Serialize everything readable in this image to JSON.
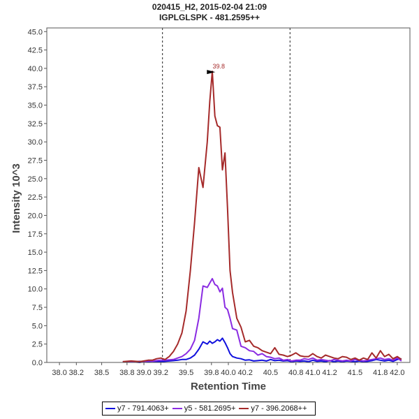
{
  "chart_data": {
    "type": "line",
    "title": "020415_H2, 2015-02-04 21:09",
    "subtitle": "IGPLGLSPK - 481.2595++",
    "xlabel": "Retention Time",
    "ylabel": "Intensity 10^3",
    "xlim": [
      37.85,
      42.15
    ],
    "ylim": [
      0,
      45.5
    ],
    "x_ticks": [
      "38.0",
      "38.2",
      "38.5",
      "38.8",
      "39.0",
      "39.2",
      "39.5",
      "39.8",
      "40.0",
      "40.2",
      "40.5",
      "40.8",
      "41.0",
      "41.2",
      "41.5",
      "41.8",
      "42.0"
    ],
    "x_tick_values": [
      38.0,
      38.2,
      38.5,
      38.8,
      39.0,
      39.2,
      39.5,
      39.8,
      40.0,
      40.2,
      40.5,
      40.8,
      41.0,
      41.2,
      41.5,
      41.8,
      42.0
    ],
    "y_ticks": [
      "0.0",
      "2.5",
      "5.0",
      "7.5",
      "10.0",
      "12.5",
      "15.0",
      "17.5",
      "20.0",
      "22.5",
      "25.0",
      "27.5",
      "30.0",
      "32.5",
      "35.0",
      "37.5",
      "40.0",
      "42.5",
      "45.0"
    ],
    "y_tick_values": [
      0,
      2.5,
      5,
      7.5,
      10,
      12.5,
      15,
      17.5,
      20,
      22.5,
      25,
      27.5,
      30,
      32.5,
      35,
      37.5,
      40,
      42.5,
      45
    ],
    "vlines": [
      39.22,
      40.73
    ],
    "peak_annotation": {
      "label": "39.8",
      "x": 39.87,
      "y": 39.6
    },
    "series": [
      {
        "name": "y7 - 791.4063+",
        "color": "#1010dd",
        "x": [
          38.75,
          38.85,
          38.95,
          39.0,
          39.05,
          39.1,
          39.15,
          39.2,
          39.25,
          39.3,
          39.35,
          39.4,
          39.45,
          39.5,
          39.55,
          39.6,
          39.65,
          39.7,
          39.75,
          39.78,
          39.81,
          39.84,
          39.87,
          39.9,
          39.93,
          39.96,
          39.99,
          40.02,
          40.05,
          40.1,
          40.15,
          40.2,
          40.25,
          40.3,
          40.35,
          40.4,
          40.45,
          40.5,
          40.55,
          40.6,
          40.65,
          40.7,
          40.75,
          40.8,
          40.85,
          40.9,
          40.95,
          41.0,
          41.05,
          41.1,
          41.15,
          41.2,
          41.25,
          41.3,
          41.35,
          41.4,
          41.45,
          41.5,
          41.55,
          41.6,
          41.65,
          41.7,
          41.75,
          41.8,
          41.85,
          41.9,
          41.95,
          42.0,
          42.05
        ],
        "y": [
          0.05,
          0.1,
          0.0,
          0.1,
          0.05,
          0.15,
          0.1,
          0.1,
          0.15,
          0.2,
          0.25,
          0.3,
          0.4,
          0.4,
          0.6,
          1.0,
          1.8,
          2.8,
          2.5,
          2.9,
          2.6,
          2.8,
          3.1,
          2.9,
          3.3,
          2.7,
          2.0,
          1.2,
          0.8,
          0.6,
          0.5,
          0.3,
          0.35,
          0.2,
          0.25,
          0.3,
          0.2,
          0.4,
          0.25,
          0.3,
          0.2,
          0.25,
          0.1,
          0.2,
          0.15,
          0.2,
          0.1,
          0.3,
          0.15,
          0.2,
          0.1,
          0.25,
          0.1,
          0.2,
          0.1,
          0.2,
          0.15,
          0.1,
          0.2,
          0.1,
          0.15,
          0.25,
          0.4,
          0.3,
          0.2,
          0.3,
          0.15,
          0.4,
          0.5
        ]
      },
      {
        "name": "y5 - 581.2695+",
        "color": "#8a2be2",
        "x": [
          38.75,
          38.85,
          38.95,
          39.0,
          39.05,
          39.1,
          39.15,
          39.2,
          39.25,
          39.3,
          39.35,
          39.4,
          39.45,
          39.5,
          39.55,
          39.6,
          39.65,
          39.7,
          39.75,
          39.78,
          39.81,
          39.84,
          39.87,
          39.9,
          39.93,
          39.96,
          39.99,
          40.02,
          40.05,
          40.1,
          40.15,
          40.2,
          40.25,
          40.3,
          40.35,
          40.4,
          40.45,
          40.5,
          40.55,
          40.6,
          40.65,
          40.7,
          40.75,
          40.8,
          40.85,
          40.9,
          40.95,
          41.0,
          41.05,
          41.1,
          41.15,
          41.2,
          41.25,
          41.3,
          41.35,
          41.4,
          41.45,
          41.5,
          41.55,
          41.6,
          41.65,
          41.7,
          41.75,
          41.8,
          41.85,
          41.9,
          41.95,
          42.0,
          42.05
        ],
        "y": [
          0.1,
          0.05,
          0.15,
          0.1,
          0.2,
          0.15,
          0.25,
          0.3,
          0.3,
          0.35,
          0.4,
          0.6,
          0.8,
          1.2,
          1.8,
          3.0,
          6.0,
          10.4,
          10.2,
          10.8,
          11.4,
          10.6,
          10.4,
          9.6,
          10.1,
          7.5,
          7.2,
          6.0,
          4.6,
          4.4,
          2.2,
          2.0,
          1.6,
          1.5,
          1.0,
          1.2,
          0.8,
          0.7,
          0.5,
          0.6,
          0.3,
          0.4,
          0.2,
          0.3,
          0.3,
          0.5,
          0.4,
          0.6,
          0.3,
          0.4,
          0.3,
          0.2,
          0.4,
          0.3,
          0.2,
          0.3,
          0.2,
          0.4,
          0.3,
          0.2,
          0.3,
          0.4,
          0.5,
          0.6,
          0.4,
          0.5,
          0.3,
          0.6,
          0.2
        ]
      },
      {
        "name": "y7 - 396.2068++",
        "color": "#a52a2a",
        "x": [
          38.75,
          38.85,
          38.95,
          39.0,
          39.05,
          39.1,
          39.15,
          39.2,
          39.25,
          39.3,
          39.35,
          39.4,
          39.45,
          39.5,
          39.55,
          39.6,
          39.65,
          39.7,
          39.75,
          39.78,
          39.81,
          39.84,
          39.87,
          39.9,
          39.93,
          39.96,
          39.99,
          40.02,
          40.05,
          40.1,
          40.15,
          40.2,
          40.25,
          40.3,
          40.35,
          40.4,
          40.45,
          40.5,
          40.55,
          40.6,
          40.65,
          40.7,
          40.75,
          40.8,
          40.85,
          40.9,
          40.95,
          41.0,
          41.05,
          41.1,
          41.15,
          41.2,
          41.25,
          41.3,
          41.35,
          41.4,
          41.45,
          41.5,
          41.55,
          41.6,
          41.65,
          41.7,
          41.75,
          41.8,
          41.85,
          41.9,
          41.95,
          42.0,
          42.05
        ],
        "y": [
          0.1,
          0.2,
          0.1,
          0.2,
          0.3,
          0.3,
          0.5,
          0.6,
          0.4,
          0.8,
          1.5,
          2.5,
          4.0,
          7.0,
          12.5,
          19.0,
          26.5,
          23.8,
          30.0,
          35.5,
          39.6,
          33.5,
          32.2,
          32.0,
          26.2,
          28.5,
          21.0,
          12.5,
          9.5,
          6.0,
          4.8,
          2.8,
          3.0,
          2.2,
          2.0,
          1.6,
          1.4,
          1.2,
          2.0,
          1.1,
          1.0,
          0.8,
          1.0,
          1.3,
          0.9,
          0.8,
          0.8,
          1.2,
          0.8,
          0.6,
          1.0,
          0.8,
          0.6,
          0.5,
          0.8,
          0.7,
          0.4,
          0.6,
          0.3,
          0.6,
          0.4,
          1.3,
          0.6,
          1.6,
          0.8,
          1.1,
          0.5,
          0.8,
          0.4
        ]
      }
    ]
  }
}
